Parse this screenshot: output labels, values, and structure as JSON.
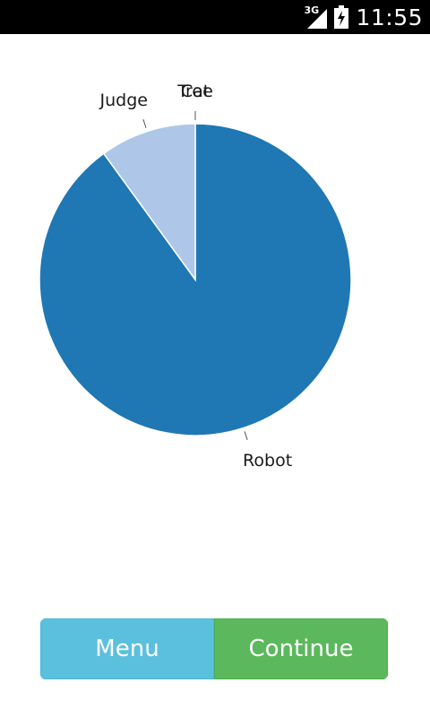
{
  "status_bar": {
    "network_type": "3G",
    "time": "11:55",
    "signal_icon": "signal-bars-icon",
    "battery_icon": "battery-charging-icon"
  },
  "chart_data": {
    "type": "pie",
    "title": "",
    "slices": [
      {
        "label": "Robot",
        "value": 90,
        "color": "#1f77b4"
      },
      {
        "label": "Judge",
        "value": 10,
        "color": "#aec7e8"
      },
      {
        "label": "Cat",
        "value": 0,
        "color": "#ff7f0e"
      },
      {
        "label": "Tree",
        "value": 0,
        "color": "#ffbb78"
      }
    ]
  },
  "buttons": {
    "menu_label": "Menu",
    "continue_label": "Continue",
    "menu_color": "#5bc0de",
    "continue_color": "#5cb85c"
  }
}
